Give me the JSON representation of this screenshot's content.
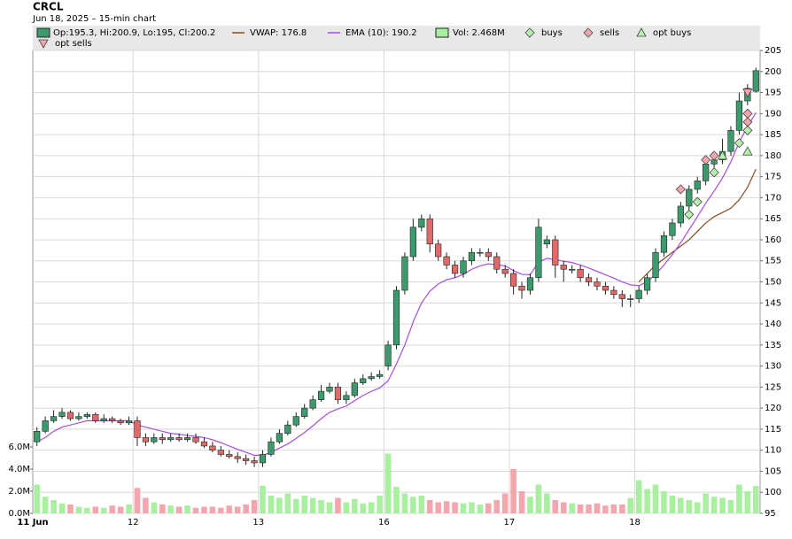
{
  "chart_data": {
    "type": "candlestick",
    "title": "CRCL",
    "subtitle": "Jun 18, 2025 – 15-min chart",
    "ohlc_label": "Op:195.3, Hi:200.9, Lo:195, Cl:200.2",
    "volume_label": "Vol: 2.468M",
    "up_color": "#3d9a6c",
    "down_color": "#e06a6a",
    "volume_up_color": "#a8f0a0",
    "volume_down_color": "#f4a6ae",
    "grid": true,
    "categories": [
      "11 Jun",
      null,
      null,
      null,
      null,
      null,
      null,
      null,
      null,
      null,
      null,
      null,
      "12",
      null,
      null,
      null,
      null,
      null,
      null,
      null,
      null,
      null,
      null,
      null,
      null,
      null,
      null,
      "13",
      null,
      null,
      null,
      null,
      null,
      null,
      null,
      null,
      null,
      null,
      null,
      null,
      null,
      null,
      "16",
      null,
      null,
      null,
      null,
      null,
      null,
      null,
      null,
      null,
      null,
      null,
      null,
      null,
      null,
      "17",
      null,
      null,
      null,
      null,
      null,
      null,
      null,
      null,
      null,
      null,
      null,
      null,
      null,
      null,
      "18",
      null,
      null,
      null,
      null,
      null,
      null,
      null,
      null,
      null,
      null,
      null,
      null,
      null,
      null
    ],
    "open": [
      112,
      114.5,
      117,
      118,
      119,
      117.5,
      118,
      118.5,
      117,
      117.5,
      117,
      116.5,
      117,
      113,
      112,
      113,
      112.5,
      113,
      112.5,
      113,
      112,
      111,
      110,
      109,
      108.5,
      108,
      107.5,
      107,
      109,
      112,
      114,
      116,
      118,
      120,
      122,
      124,
      125,
      122,
      123,
      126,
      127,
      127.5,
      130,
      135,
      148,
      156,
      163,
      165,
      159,
      156,
      154,
      152,
      155,
      157,
      157,
      156,
      153,
      152,
      149,
      148,
      151,
      159,
      160,
      154,
      153,
      153,
      151,
      150,
      149,
      148,
      147,
      146,
      146,
      148,
      151,
      157,
      161,
      164,
      168,
      172,
      174,
      178,
      179,
      181,
      186,
      193,
      195.3
    ],
    "high": [
      115.5,
      118,
      119.5,
      120,
      119.5,
      119,
      119,
      119,
      118.5,
      118,
      117.5,
      118,
      118,
      114,
      114,
      114,
      114,
      114,
      114,
      114,
      113,
      112,
      111,
      110,
      109.5,
      109,
      108.5,
      110,
      113,
      115,
      117,
      119,
      121,
      123,
      125.5,
      126,
      126,
      124,
      127,
      128,
      128.5,
      129,
      136,
      149,
      157,
      165,
      166,
      166,
      160,
      157,
      155,
      156,
      158,
      158,
      158,
      157,
      154,
      153,
      150,
      152,
      165,
      161,
      161,
      155,
      154,
      154,
      152,
      151,
      150,
      149,
      148,
      147,
      149,
      152,
      158,
      162,
      165,
      169,
      173,
      175,
      179,
      180,
      184,
      187,
      195,
      197,
      200.9
    ],
    "low": [
      111,
      114,
      116.5,
      117.5,
      117,
      117,
      117.5,
      116.5,
      116.5,
      116.5,
      116,
      116,
      111,
      111,
      111.5,
      111.5,
      112,
      112,
      112,
      111.5,
      110.5,
      109.5,
      108.5,
      108,
      107,
      106.5,
      106,
      106,
      108.5,
      111.5,
      113.5,
      115.5,
      117.5,
      119.5,
      121.5,
      123.5,
      121,
      121,
      122.5,
      125.5,
      126.5,
      127,
      129,
      134,
      147,
      155,
      162,
      157,
      155,
      153,
      151,
      151,
      154,
      156,
      155,
      152,
      151,
      147,
      146,
      147,
      150,
      158,
      151,
      150,
      152,
      150,
      149,
      148,
      147,
      146,
      144,
      144,
      145,
      147,
      150,
      156,
      160,
      163,
      167,
      171,
      173,
      176,
      178,
      180,
      185,
      192,
      195
    ],
    "close": [
      114.5,
      117,
      118,
      119,
      117.5,
      118,
      118.5,
      117,
      117.5,
      117,
      116.5,
      117,
      113,
      112,
      113,
      112.5,
      113,
      112.5,
      113,
      112,
      111,
      110,
      109,
      108.5,
      108,
      107.5,
      107,
      109,
      112,
      114,
      116,
      118,
      120,
      122,
      124,
      125,
      122,
      123,
      126,
      127,
      127.5,
      128,
      135,
      148,
      156,
      163,
      165,
      159,
      156,
      154,
      152,
      155,
      157,
      157,
      156,
      153,
      152,
      149,
      148,
      151,
      163,
      160,
      154,
      153,
      153,
      151,
      150,
      149,
      148,
      147,
      146,
      146,
      148,
      151,
      157,
      161,
      164,
      168,
      172,
      174,
      178,
      179,
      181,
      186,
      193,
      196,
      200.2
    ],
    "volume": [
      2.6,
      1.5,
      1.2,
      0.9,
      0.8,
      0.6,
      0.5,
      0.6,
      0.5,
      0.7,
      0.6,
      0.8,
      2.3,
      1.4,
      1.0,
      0.8,
      0.7,
      0.6,
      0.7,
      0.5,
      0.6,
      0.6,
      0.5,
      0.7,
      0.6,
      0.8,
      1.2,
      2.5,
      1.6,
      1.4,
      1.8,
      1.3,
      1.6,
      1.4,
      1.2,
      1.0,
      1.4,
      1.0,
      1.3,
      0.9,
      1.0,
      1.6,
      5.4,
      2.4,
      1.8,
      1.5,
      1.6,
      1.2,
      1.0,
      1.1,
      1.0,
      0.9,
      1.0,
      0.8,
      0.9,
      1.2,
      1.8,
      4.0,
      2.0,
      1.5,
      2.6,
      1.8,
      1.2,
      1.0,
      0.9,
      0.8,
      0.8,
      0.9,
      0.7,
      0.8,
      0.8,
      1.4,
      3.0,
      2.2,
      2.6,
      2.0,
      1.6,
      1.4,
      1.2,
      1.0,
      1.8,
      1.5,
      1.4,
      1.2,
      2.6,
      2.0,
      2.468
    ],
    "series": [
      {
        "name": "VWAP: 176.8",
        "color": "#8b4a1e",
        "values": [
          null,
          null,
          null,
          null,
          null,
          null,
          null,
          null,
          null,
          null,
          null,
          null,
          null,
          null,
          null,
          null,
          null,
          null,
          null,
          null,
          null,
          null,
          null,
          null,
          null,
          null,
          null,
          null,
          null,
          null,
          null,
          null,
          null,
          null,
          null,
          null,
          null,
          null,
          null,
          null,
          null,
          null,
          null,
          null,
          null,
          null,
          null,
          null,
          null,
          null,
          null,
          null,
          null,
          null,
          null,
          null,
          null,
          null,
          null,
          null,
          null,
          null,
          null,
          null,
          null,
          null,
          null,
          null,
          null,
          null,
          null,
          null,
          150,
          152,
          154,
          155.5,
          157,
          158.5,
          160,
          162,
          164,
          165.5,
          166.5,
          167.5,
          169.5,
          172.5,
          176.8
        ]
      },
      {
        "name": "EMA (10): 190.2",
        "color": "#a64ce6",
        "values": [
          112,
          113,
          114.5,
          115.5,
          116,
          116.5,
          117,
          117,
          117,
          117,
          117,
          117,
          116,
          115.5,
          115,
          114.5,
          114,
          113.8,
          113.5,
          113.3,
          113,
          112.5,
          111.8,
          111,
          110.2,
          109.5,
          108.8,
          108.8,
          109.5,
          110.5,
          111.5,
          112.8,
          114.2,
          115.8,
          117.5,
          119,
          119.8,
          120.5,
          121.8,
          123,
          124,
          124.8,
          126.5,
          130.5,
          135,
          140.5,
          145,
          147.8,
          149.5,
          150.5,
          151,
          151.8,
          153,
          153.8,
          154.3,
          154.1,
          153.8,
          152.7,
          151.8,
          151.7,
          154.7,
          155.6,
          155.3,
          154.9,
          154.6,
          154,
          153.3,
          152.5,
          151.7,
          150.9,
          150,
          149.3,
          149.1,
          150,
          151.8,
          154,
          156.5,
          159.3,
          162.4,
          165.5,
          168.7,
          171.6,
          174.7,
          178.5,
          183.2,
          187,
          190.2
        ]
      }
    ],
    "markers": [
      {
        "name": "buys",
        "color": "#b8f0b0",
        "shape": "diamond",
        "x": [
          78,
          79,
          81,
          84,
          85
        ],
        "values": [
          166,
          169,
          176,
          183,
          186
        ]
      },
      {
        "name": "sells",
        "color": "#f4a6ae",
        "shape": "diamond",
        "x": [
          77,
          80,
          81,
          85,
          85
        ],
        "values": [
          172,
          179,
          180,
          188,
          190
        ]
      },
      {
        "name": "opt buys",
        "color": "#b8f0b0",
        "shape": "triangle-up",
        "x": [
          82,
          85
        ],
        "values": [
          180,
          181
        ]
      },
      {
        "name": "opt sells",
        "color": "#f4a6ae",
        "shape": "triangle-down",
        "x": [
          85
        ],
        "values": [
          195
        ]
      }
    ],
    "ylim": [
      95,
      205
    ],
    "yticks": [
      95,
      100,
      105,
      110,
      115,
      120,
      125,
      130,
      135,
      140,
      145,
      150,
      155,
      160,
      165,
      170,
      175,
      180,
      185,
      190,
      195,
      200,
      205
    ],
    "y2lim": [
      0,
      41.84
    ],
    "y2ticks": [
      {
        "value": 0,
        "label": "0.0M"
      },
      {
        "value": 2,
        "label": "2.0M"
      },
      {
        "value": 4,
        "label": "4.0M"
      },
      {
        "value": 6,
        "label": "6.0M"
      }
    ]
  }
}
